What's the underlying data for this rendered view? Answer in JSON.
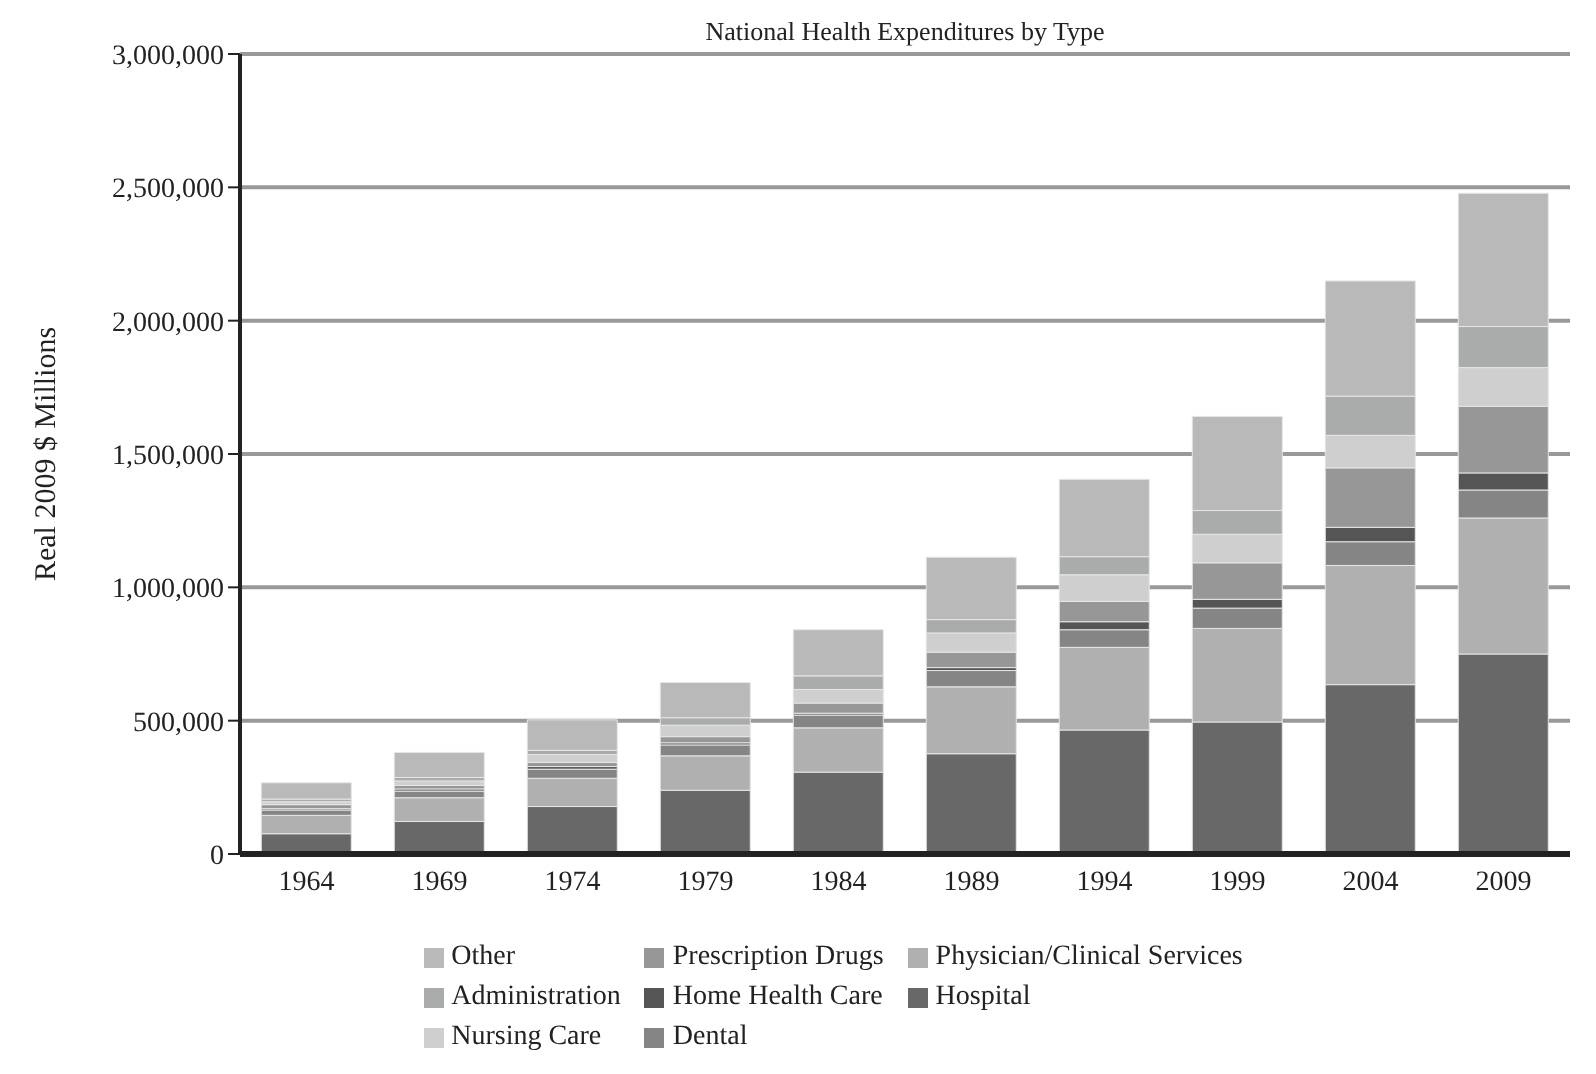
{
  "chart_data": {
    "type": "bar",
    "title": "National Health Expenditures by Type",
    "ylabel": "Real 2009 $ Millions",
    "categories": [
      "1964",
      "1969",
      "1974",
      "1979",
      "1984",
      "1989",
      "1994",
      "1999",
      "2004",
      "2009"
    ],
    "stacked": true,
    "grid": "y",
    "legend": "bottom",
    "ylim": [
      0,
      3000000
    ],
    "yticks": [
      {
        "value": 0,
        "label": "0"
      },
      {
        "value": 500000,
        "label": "500,000"
      },
      {
        "value": 1000000,
        "label": "1,000,000"
      },
      {
        "value": 1500000,
        "label": "1,500,000"
      },
      {
        "value": 2000000,
        "label": "2,000,000"
      },
      {
        "value": 2500000,
        "label": "2,500,000"
      },
      {
        "value": 3000000,
        "label": "3,000,000"
      }
    ],
    "series": [
      {
        "name": "Hospital",
        "color": "#686868",
        "values": [
          76000,
          122000,
          178000,
          239000,
          307000,
          376000,
          465000,
          495000,
          635000,
          750000
        ]
      },
      {
        "name": "Physician/Clinical Services",
        "color": "#b0b0b0",
        "values": [
          69000,
          89000,
          106000,
          129000,
          166000,
          251000,
          310000,
          351000,
          447000,
          510000
        ]
      },
      {
        "name": "Dental",
        "color": "#858585",
        "values": [
          20000,
          25000,
          34000,
          41000,
          48000,
          61000,
          66000,
          76000,
          89000,
          105000
        ]
      },
      {
        "name": "Home Health Care",
        "color": "#555555",
        "values": [
          5000,
          8000,
          10000,
          8000,
          7000,
          11000,
          30000,
          33000,
          54000,
          64000
        ]
      },
      {
        "name": "Prescription Drugs",
        "color": "#979797",
        "values": [
          15000,
          13000,
          15000,
          23000,
          38000,
          58000,
          76000,
          137000,
          223000,
          250000
        ]
      },
      {
        "name": "Nursing Care",
        "color": "#cfcfcf",
        "values": [
          11000,
          17000,
          30000,
          43000,
          51000,
          72000,
          100000,
          107000,
          122000,
          145000
        ]
      },
      {
        "name": "Administration",
        "color": "#aaacab",
        "values": [
          10000,
          13000,
          16000,
          28000,
          51000,
          50000,
          68000,
          89000,
          147000,
          154000
        ]
      },
      {
        "name": "Other",
        "color": "#b9b9b9",
        "values": [
          61000,
          94000,
          114000,
          132000,
          173000,
          234000,
          290000,
          353000,
          432000,
          500000
        ]
      }
    ]
  }
}
